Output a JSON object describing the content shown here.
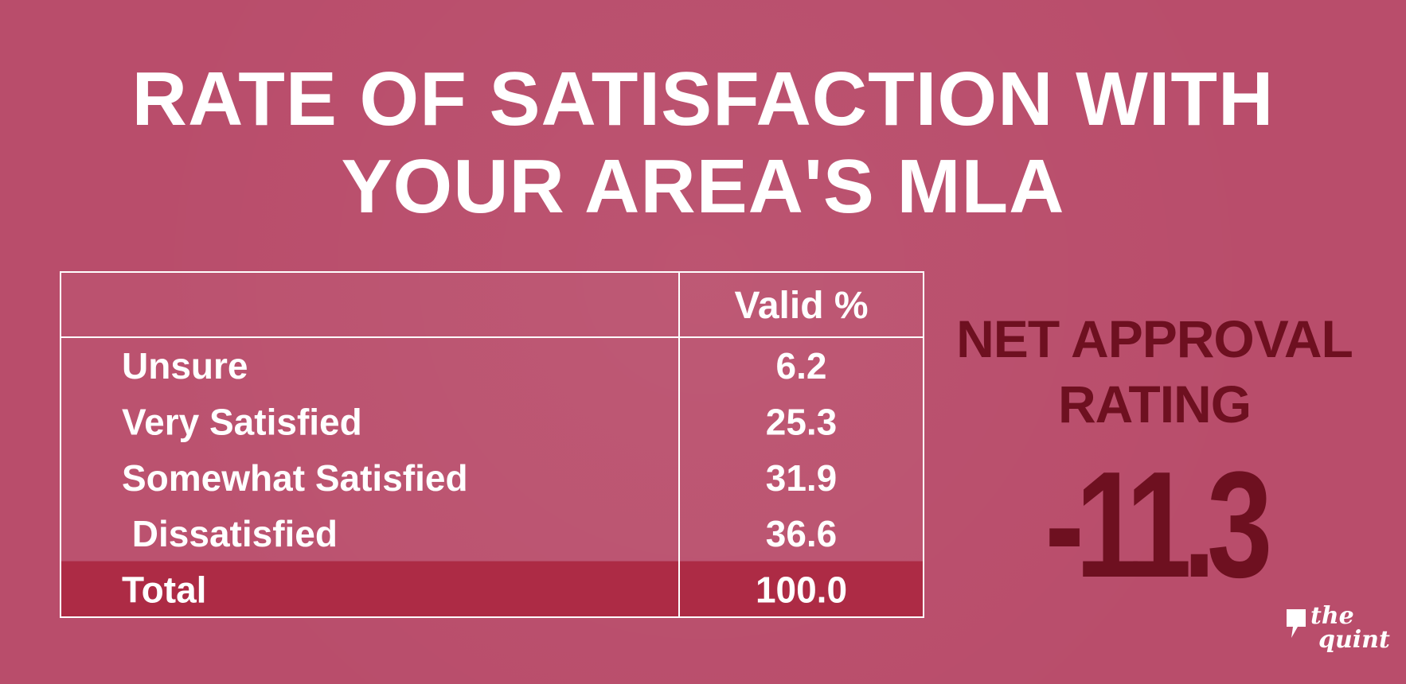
{
  "title": {
    "line1": "RATE OF SATISFACTION WITH",
    "line2": "YOUR AREA'S MLA"
  },
  "chart_data": {
    "type": "table",
    "columns": [
      "",
      "Valid %"
    ],
    "rows": [
      {
        "label": "Unsure",
        "value": "6.2"
      },
      {
        "label": "Very Satisfied",
        "value": "25.3"
      },
      {
        "label": "Somewhat Satisfied",
        "value": "31.9"
      },
      {
        "label": " Dissatisfied",
        "value": "36.6"
      },
      {
        "label": "Total",
        "value": "100.0"
      }
    ],
    "highlight_row": "Total"
  },
  "net_approval": {
    "label_line1": "NET APPROVAL",
    "label_line2": "RATING",
    "value": "-11.3"
  },
  "logo": {
    "line1": "the",
    "line2": "quint"
  },
  "colors": {
    "background": "#b94d6b",
    "total_row": "#ad2b45",
    "net_text": "#6e1020",
    "table_lines": "#ffffff"
  }
}
